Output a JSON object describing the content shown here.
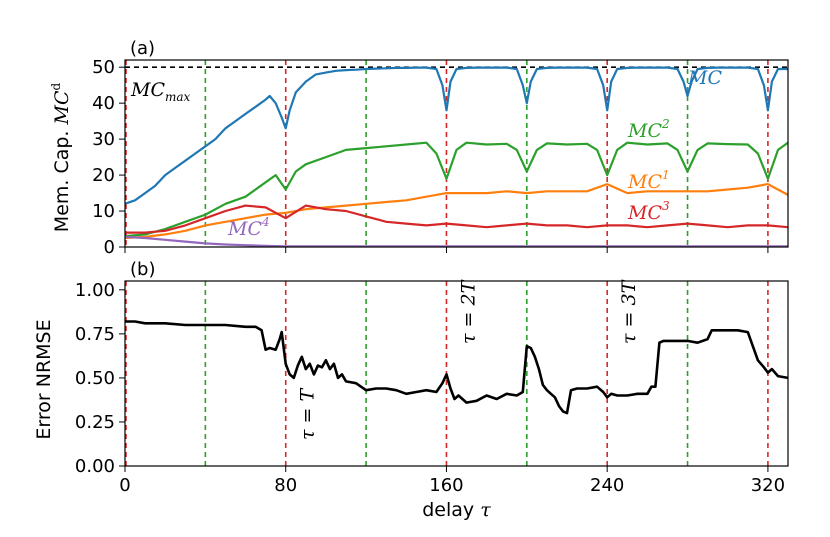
{
  "chart_data": [
    {
      "type": "line",
      "panel_label": "(a)",
      "ylabel_prefix": "Mem. Cap.",
      "ylabel_math": "MC",
      "ylabel_sup": "d",
      "xlim": [
        0,
        330
      ],
      "ylim": [
        0,
        52
      ],
      "yticks": [
        "0",
        "10",
        "20",
        "30",
        "40",
        "50"
      ],
      "ytick_values": [
        0,
        10,
        20,
        30,
        40,
        50
      ],
      "max_line": {
        "value": 50,
        "label": "MC",
        "label_sub": "max",
        "color": "#000000"
      },
      "red_vlines": [
        0,
        80,
        160,
        240,
        320
      ],
      "green_vlines": [
        40,
        120,
        200,
        280
      ],
      "series": [
        {
          "name": "MC",
          "label": "MC",
          "sup": "",
          "color": "#1f77b4",
          "x": [
            0,
            5,
            10,
            15,
            20,
            25,
            30,
            35,
            40,
            45,
            50,
            55,
            60,
            65,
            70,
            72,
            75,
            78,
            80,
            82,
            85,
            90,
            95,
            100,
            105,
            110,
            115,
            120,
            125,
            130,
            135,
            140,
            145,
            150,
            155,
            158,
            160,
            162,
            165,
            170,
            175,
            180,
            185,
            190,
            195,
            198,
            200,
            202,
            205,
            210,
            215,
            220,
            225,
            230,
            235,
            238,
            240,
            242,
            245,
            250,
            255,
            260,
            265,
            270,
            275,
            278,
            280,
            282,
            285,
            290,
            295,
            300,
            305,
            310,
            315,
            318,
            320,
            322,
            325,
            330
          ],
          "y": [
            12,
            13,
            15,
            17,
            20,
            22,
            24,
            26,
            28,
            30,
            33,
            35,
            37,
            39,
            41,
            42,
            40,
            36,
            33,
            38,
            43,
            46,
            48,
            48.5,
            49,
            49.2,
            49.3,
            49.5,
            49.6,
            49.7,
            49.8,
            49.8,
            49.9,
            49.9,
            49.5,
            45,
            38,
            46,
            49.5,
            49.8,
            49.9,
            49.9,
            49.9,
            49.9,
            49.5,
            45,
            40,
            46,
            49.5,
            49.8,
            49.9,
            49.9,
            49.9,
            49.9,
            49.5,
            45,
            38,
            46,
            49.5,
            49.8,
            49.9,
            49.9,
            49.9,
            49.9,
            49.5,
            46,
            42,
            46,
            49.5,
            49.8,
            49.9,
            49.9,
            49.9,
            49.9,
            49.5,
            45,
            38,
            46,
            49.5,
            49.5
          ]
        },
        {
          "name": "MC2",
          "label": "MC",
          "sup": "2",
          "color": "#2ca02c",
          "x": [
            0,
            10,
            20,
            30,
            40,
            50,
            60,
            70,
            75,
            80,
            85,
            90,
            100,
            110,
            120,
            130,
            140,
            150,
            155,
            160,
            165,
            170,
            180,
            190,
            195,
            200,
            205,
            210,
            220,
            230,
            235,
            240,
            245,
            250,
            260,
            270,
            275,
            280,
            285,
            290,
            300,
            310,
            315,
            320,
            325,
            330
          ],
          "y": [
            3,
            3.5,
            5,
            7,
            9,
            12,
            14,
            18,
            20,
            16,
            21,
            23,
            25,
            27,
            27.5,
            28,
            28.5,
            29,
            26,
            19,
            27,
            29,
            28.5,
            28.7,
            27,
            21,
            27,
            28.8,
            28.5,
            28.7,
            27,
            20,
            27,
            29,
            28.5,
            28.8,
            27,
            21,
            27,
            28.8,
            28.6,
            28.5,
            26,
            19,
            27,
            29
          ]
        },
        {
          "name": "MC1",
          "label": "MC",
          "sup": "1",
          "color": "#ff7f0e",
          "x": [
            0,
            10,
            20,
            30,
            40,
            50,
            60,
            70,
            80,
            90,
            100,
            110,
            120,
            130,
            140,
            150,
            160,
            170,
            180,
            190,
            200,
            210,
            220,
            230,
            240,
            250,
            260,
            270,
            280,
            290,
            300,
            310,
            320,
            330
          ],
          "y": [
            2.5,
            2.8,
            3.5,
            4.5,
            6,
            7,
            8,
            9,
            9.5,
            10.5,
            11,
            11.5,
            12,
            12.5,
            13,
            14,
            15,
            15,
            15,
            15.5,
            15,
            15.5,
            15.5,
            15.5,
            17.5,
            15,
            15.5,
            15.5,
            15.5,
            15.5,
            16,
            16.5,
            17.5,
            14.5
          ]
        },
        {
          "name": "MC3",
          "label": "MC",
          "sup": "3",
          "color": "#d62728",
          "x": [
            0,
            10,
            20,
            30,
            40,
            50,
            60,
            70,
            80,
            90,
            100,
            110,
            120,
            130,
            140,
            150,
            160,
            170,
            180,
            190,
            200,
            210,
            220,
            230,
            240,
            250,
            260,
            270,
            280,
            290,
            300,
            310,
            320,
            330
          ],
          "y": [
            4,
            4,
            4.5,
            6,
            8,
            10,
            11.5,
            11,
            8,
            11.5,
            10.5,
            10,
            8.5,
            7,
            6.5,
            6,
            6.5,
            6,
            5.5,
            6,
            6.5,
            6,
            6,
            5.5,
            6,
            6,
            5.5,
            6,
            6.5,
            6,
            5.5,
            6,
            6,
            5.5
          ]
        },
        {
          "name": "MC4",
          "label": "MC",
          "sup": "4",
          "color": "#9467bd",
          "x": [
            0,
            10,
            20,
            30,
            40,
            50,
            60,
            70,
            80,
            100,
            150,
            200,
            250,
            300,
            330
          ],
          "y": [
            2.8,
            2.5,
            2,
            1.5,
            1,
            0.7,
            0.5,
            0.3,
            0.2,
            0.2,
            0.2,
            0.2,
            0.2,
            0.2,
            0.2
          ]
        }
      ]
    },
    {
      "type": "line",
      "panel_label": "(b)",
      "ylabel": "Error NRMSE",
      "xlabel": "delay",
      "xlabel_math": "τ",
      "xlim": [
        0,
        330
      ],
      "ylim": [
        0,
        1.05
      ],
      "xticks": [
        "0",
        "80",
        "160",
        "240",
        "320"
      ],
      "xtick_values": [
        0,
        80,
        160,
        240,
        320
      ],
      "yticks": [
        "0.00",
        "0.25",
        "0.50",
        "0.75",
        "1.00"
      ],
      "ytick_values": [
        0,
        0.25,
        0.5,
        0.75,
        1.0
      ],
      "red_vlines": [
        0,
        80,
        160,
        240,
        320
      ],
      "green_vlines": [
        40,
        120,
        200,
        280
      ],
      "annotations": [
        {
          "text": "τ = T",
          "x": 80
        },
        {
          "text": "τ = 2T",
          "x": 160
        },
        {
          "text": "τ = 3T",
          "x": 240
        }
      ],
      "series": [
        {
          "name": "Error NRMSE",
          "color": "#000000",
          "x": [
            0,
            2,
            3,
            5,
            10,
            20,
            30,
            40,
            50,
            60,
            65,
            68,
            70,
            72,
            75,
            77,
            78,
            80,
            82,
            84,
            86,
            88,
            90,
            92,
            94,
            96,
            98,
            100,
            102,
            104,
            106,
            108,
            110,
            115,
            120,
            125,
            130,
            135,
            140,
            145,
            150,
            155,
            158,
            160,
            162,
            164,
            166,
            170,
            175,
            180,
            185,
            190,
            195,
            198,
            199,
            200,
            202,
            204,
            206,
            208,
            210,
            212,
            214,
            216,
            218,
            220,
            222,
            225,
            230,
            235,
            238,
            240,
            242,
            245,
            250,
            255,
            260,
            262,
            264,
            266,
            268,
            270,
            275,
            280,
            285,
            290,
            292,
            294,
            300,
            305,
            310,
            315,
            318,
            320,
            322,
            325,
            330
          ],
          "y": [
            0.82,
            0.82,
            0.82,
            0.82,
            0.81,
            0.81,
            0.8,
            0.8,
            0.8,
            0.79,
            0.79,
            0.77,
            0.66,
            0.67,
            0.66,
            0.72,
            0.76,
            0.58,
            0.52,
            0.5,
            0.57,
            0.62,
            0.55,
            0.58,
            0.52,
            0.57,
            0.56,
            0.6,
            0.55,
            0.58,
            0.5,
            0.52,
            0.48,
            0.47,
            0.43,
            0.44,
            0.44,
            0.43,
            0.41,
            0.42,
            0.43,
            0.42,
            0.47,
            0.52,
            0.44,
            0.38,
            0.4,
            0.36,
            0.37,
            0.4,
            0.38,
            0.41,
            0.4,
            0.42,
            0.55,
            0.68,
            0.67,
            0.62,
            0.55,
            0.46,
            0.43,
            0.41,
            0.39,
            0.34,
            0.31,
            0.3,
            0.43,
            0.44,
            0.44,
            0.45,
            0.42,
            0.39,
            0.41,
            0.4,
            0.4,
            0.41,
            0.41,
            0.45,
            0.45,
            0.7,
            0.71,
            0.71,
            0.71,
            0.71,
            0.7,
            0.72,
            0.77,
            0.77,
            0.77,
            0.77,
            0.76,
            0.6,
            0.56,
            0.53,
            0.55,
            0.51,
            0.5
          ]
        }
      ]
    }
  ]
}
